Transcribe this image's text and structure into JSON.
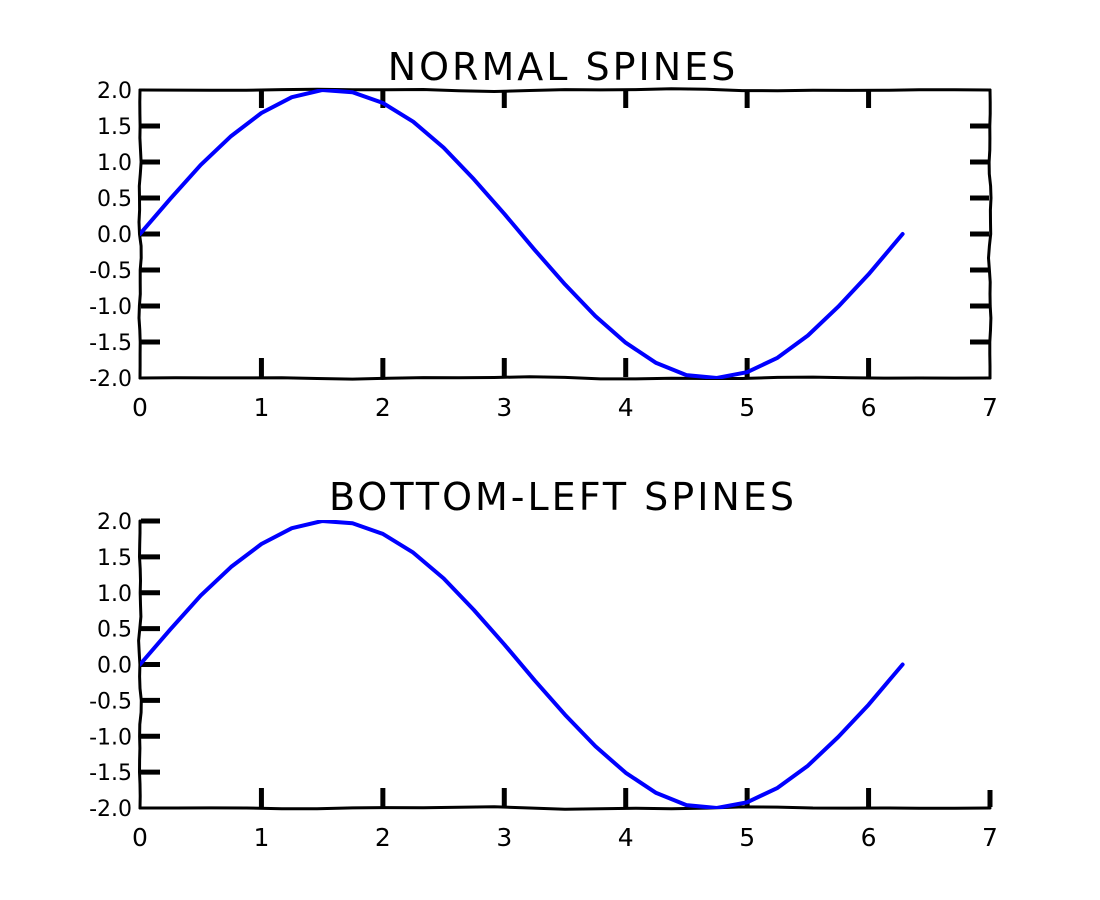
{
  "colors": {
    "line": "#0000ff",
    "axis": "#000000",
    "background": "#ffffff"
  },
  "chart_data": [
    {
      "type": "line",
      "title": "NORMAL SPINES",
      "spines": [
        "left",
        "right",
        "top",
        "bottom"
      ],
      "tick_sides": [
        "left",
        "right",
        "top",
        "bottom"
      ],
      "xlim": [
        0,
        7
      ],
      "ylim": [
        -2.0,
        2.0
      ],
      "x_ticks": [
        0,
        1,
        2,
        3,
        4,
        5,
        6,
        7
      ],
      "x_tick_labels": [
        "0",
        "1",
        "2",
        "3",
        "4",
        "5",
        "6",
        "7"
      ],
      "y_ticks": [
        2.0,
        1.5,
        1.0,
        0.5,
        0.0,
        -0.5,
        -1.0,
        -1.5,
        -2.0
      ],
      "y_tick_labels": [
        "2.0",
        "1.5",
        "1.0",
        "0.5",
        "0.0",
        "-0.5",
        "-1.0",
        "-1.5",
        "-2.0"
      ],
      "grid": false,
      "series": [
        {
          "x": [
            0.0,
            0.25,
            0.5,
            0.75,
            1.0,
            1.25,
            1.5,
            1.75,
            2.0,
            2.25,
            2.5,
            2.75,
            3.0,
            3.25,
            3.5,
            3.75,
            4.0,
            4.25,
            4.5,
            4.75,
            5.0,
            5.25,
            5.5,
            5.75,
            6.0,
            6.28
          ],
          "y": [
            0.0,
            0.49,
            0.96,
            1.36,
            1.68,
            1.9,
            2.0,
            1.97,
            1.82,
            1.56,
            1.2,
            0.76,
            0.28,
            -0.22,
            -0.7,
            -1.14,
            -1.51,
            -1.79,
            -1.96,
            -2.0,
            -1.92,
            -1.72,
            -1.41,
            -1.01,
            -0.56,
            0.0
          ]
        }
      ]
    },
    {
      "type": "line",
      "title": "BOTTOM-LEFT SPINES",
      "spines": [
        "left",
        "bottom"
      ],
      "tick_sides": [
        "left",
        "bottom"
      ],
      "xlim": [
        0,
        7
      ],
      "ylim": [
        -2.0,
        2.0
      ],
      "x_ticks": [
        0,
        1,
        2,
        3,
        4,
        5,
        6,
        7
      ],
      "x_tick_labels": [
        "0",
        "1",
        "2",
        "3",
        "4",
        "5",
        "6",
        "7"
      ],
      "y_ticks": [
        2.0,
        1.5,
        1.0,
        0.5,
        0.0,
        -0.5,
        -1.0,
        -1.5,
        -2.0
      ],
      "y_tick_labels": [
        "2.0",
        "1.5",
        "1.0",
        "0.5",
        "0.0",
        "-0.5",
        "-1.0",
        "-1.5",
        "-2.0"
      ],
      "grid": false,
      "series": [
        {
          "x": [
            0.0,
            0.25,
            0.5,
            0.75,
            1.0,
            1.25,
            1.5,
            1.75,
            2.0,
            2.25,
            2.5,
            2.75,
            3.0,
            3.25,
            3.5,
            3.75,
            4.0,
            4.25,
            4.5,
            4.75,
            5.0,
            5.25,
            5.5,
            5.75,
            6.0,
            6.28
          ],
          "y": [
            0.0,
            0.49,
            0.96,
            1.36,
            1.68,
            1.9,
            2.0,
            1.97,
            1.82,
            1.56,
            1.2,
            0.76,
            0.28,
            -0.22,
            -0.7,
            -1.14,
            -1.51,
            -1.79,
            -1.96,
            -2.0,
            -1.92,
            -1.72,
            -1.41,
            -1.01,
            -0.56,
            0.0
          ]
        }
      ]
    }
  ]
}
